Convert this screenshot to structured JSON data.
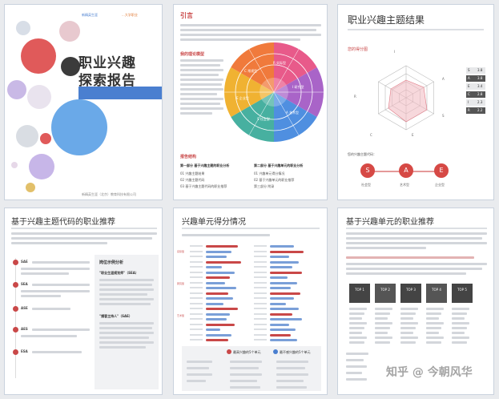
{
  "cover": {
    "title_line1": "职业兴趣",
    "title_line2": "探索报告",
    "brand_left": "新精英生涯",
    "brand_right": "...大学职业",
    "footer": "新精英生涯（北京）教育科技有限公司"
  },
  "intro_page": {
    "heading": "引言",
    "section_theory": "我的理论模型",
    "section_structure": "报告结构",
    "part1_title": "第一部分 基于兴趣主题的职业分析",
    "part2_title": "第二部分 基于兴趣单元的职业分析",
    "part1_items": [
      "01 兴趣主题结果",
      "02 兴趣主题代码",
      "03 基于兴趣主题代码的职业推荐"
    ],
    "part2_items": [
      "01 兴趣单元得分情况",
      "02 基于兴趣单元的职业推荐",
      "第三部分 附录"
    ],
    "wheel_labels": [
      "R 实际型",
      "I 研究型",
      "A 艺术型",
      "S 社会型",
      "E 企业型",
      "C 常规型"
    ]
  },
  "results_page": {
    "heading": "职业兴趣主题结果",
    "sub_heading": "您的得分图",
    "hex_labels": [
      "I",
      "A",
      "S",
      "E",
      "C",
      "R"
    ],
    "scores": [
      {
        "code": "S",
        "score": "3.8"
      },
      {
        "code": "A",
        "score": "3.8"
      },
      {
        "code": "E",
        "score": "3.4"
      },
      {
        "code": "C",
        "score": "2.8"
      },
      {
        "code": "I",
        "score": "2.3"
      },
      {
        "code": "R",
        "score": "2.2"
      }
    ],
    "code_label": "您的兴趣主题代码：",
    "codes": [
      {
        "letter": "S",
        "name": "社会型"
      },
      {
        "letter": "A",
        "name": "艺术型"
      },
      {
        "letter": "E",
        "name": "企业型"
      }
    ]
  },
  "recommend_page": {
    "heading": "基于兴趣主题代码的职业推荐",
    "codes": [
      "SAE",
      "SEA",
      "ASE",
      "AES",
      "ESA"
    ],
    "side_title": "岗位示例分析",
    "side_items": [
      "\"职业生涯规划师\"（SEA）",
      "\"播客主持人\"（SAE）"
    ]
  },
  "units_page": {
    "heading": "兴趣单元得分情况",
    "legend_high": "最高兴趣的5个单元",
    "legend_low": "最不感兴趣的5个单元",
    "side_labels": [
      "实际型",
      "研究型",
      "艺术型"
    ]
  },
  "unit_recommend_page": {
    "heading": "基于兴趣单元的职业推荐",
    "tops": [
      "TOP 1",
      "TOP 2",
      "TOP 3",
      "TOP 4",
      "TOP 5"
    ],
    "watermark": "知乎 @ 今朝风华"
  },
  "colors": {
    "red": "#d64945",
    "blue": "#4a7fd0",
    "accent_red": "#c94848"
  }
}
